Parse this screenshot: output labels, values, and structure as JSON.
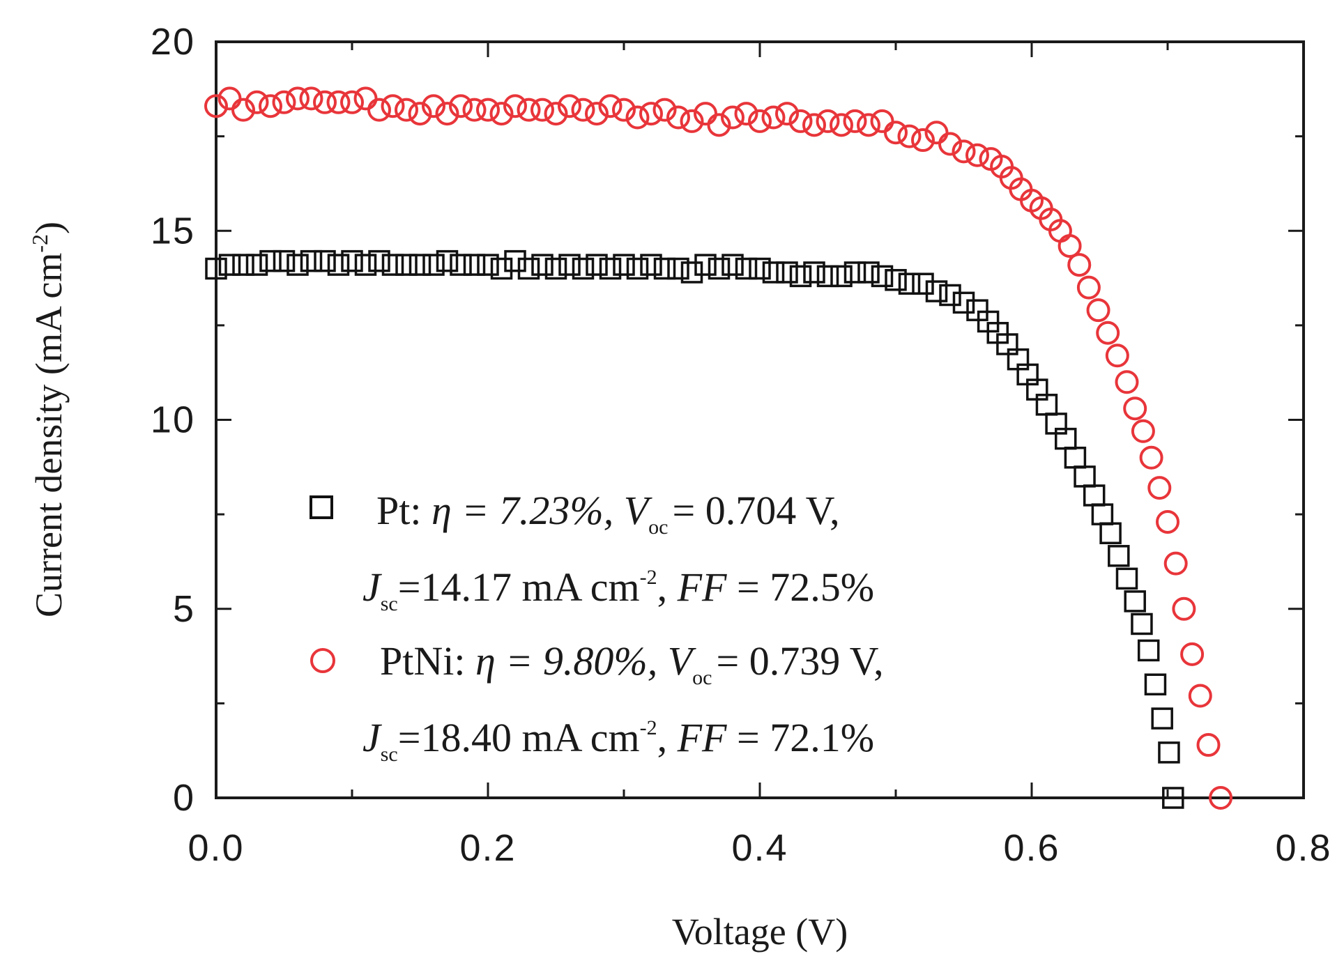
{
  "chart_data": {
    "type": "scatter",
    "title": "",
    "xlabel": "Voltage (V)",
    "ylabel": "Current density (mA cm",
    "ylabel_sup": "-2",
    "ylabel_close": ")",
    "xlim": [
      0.0,
      0.8
    ],
    "ylim": [
      0,
      20
    ],
    "x_ticks": [
      0.0,
      0.2,
      0.4,
      0.6,
      0.8
    ],
    "x_tick_labels": [
      "0.0",
      "0.2",
      "0.4",
      "0.6",
      "0.8"
    ],
    "y_ticks": [
      0,
      5,
      10,
      15,
      20
    ],
    "y_tick_labels": [
      "0",
      "5",
      "10",
      "15",
      "20"
    ],
    "legend_location": "center-left",
    "series": [
      {
        "name": "Pt",
        "marker": "square",
        "color": "#111111",
        "legend": {
          "name": "Pt:",
          "eta": "η = 7.23%,",
          "voc_label": "V",
          "voc_sub": "oc",
          "voc_value": "= 0.704 V,",
          "jsc_label": "J",
          "jsc_sub": "sc",
          "jsc_value": "=14.17 mA cm",
          "jsc_sup": "-2",
          "ff_sep": ",",
          "ff_label": "FF",
          "ff_value": "= 72.5%"
        },
        "points": [
          [
            0.0,
            14.0
          ],
          [
            0.01,
            14.1
          ],
          [
            0.02,
            14.1
          ],
          [
            0.03,
            14.1
          ],
          [
            0.04,
            14.2
          ],
          [
            0.05,
            14.2
          ],
          [
            0.06,
            14.1
          ],
          [
            0.07,
            14.2
          ],
          [
            0.08,
            14.2
          ],
          [
            0.09,
            14.1
          ],
          [
            0.1,
            14.2
          ],
          [
            0.11,
            14.1
          ],
          [
            0.12,
            14.2
          ],
          [
            0.13,
            14.1
          ],
          [
            0.14,
            14.1
          ],
          [
            0.15,
            14.1
          ],
          [
            0.16,
            14.1
          ],
          [
            0.17,
            14.2
          ],
          [
            0.18,
            14.1
          ],
          [
            0.19,
            14.1
          ],
          [
            0.2,
            14.1
          ],
          [
            0.21,
            14.0
          ],
          [
            0.22,
            14.2
          ],
          [
            0.23,
            14.0
          ],
          [
            0.24,
            14.1
          ],
          [
            0.25,
            14.0
          ],
          [
            0.26,
            14.1
          ],
          [
            0.27,
            14.0
          ],
          [
            0.28,
            14.1
          ],
          [
            0.29,
            14.0
          ],
          [
            0.3,
            14.1
          ],
          [
            0.31,
            14.0
          ],
          [
            0.32,
            14.1
          ],
          [
            0.33,
            14.0
          ],
          [
            0.34,
            14.0
          ],
          [
            0.35,
            13.9
          ],
          [
            0.36,
            14.1
          ],
          [
            0.37,
            14.0
          ],
          [
            0.38,
            14.1
          ],
          [
            0.39,
            14.0
          ],
          [
            0.4,
            14.0
          ],
          [
            0.41,
            13.9
          ],
          [
            0.42,
            13.9
          ],
          [
            0.43,
            13.8
          ],
          [
            0.44,
            13.9
          ],
          [
            0.45,
            13.8
          ],
          [
            0.46,
            13.8
          ],
          [
            0.47,
            13.9
          ],
          [
            0.48,
            13.9
          ],
          [
            0.49,
            13.8
          ],
          [
            0.5,
            13.7
          ],
          [
            0.51,
            13.6
          ],
          [
            0.52,
            13.6
          ],
          [
            0.53,
            13.4
          ],
          [
            0.54,
            13.3
          ],
          [
            0.55,
            13.1
          ],
          [
            0.56,
            12.9
          ],
          [
            0.568,
            12.6
          ],
          [
            0.575,
            12.3
          ],
          [
            0.582,
            12.0
          ],
          [
            0.59,
            11.6
          ],
          [
            0.597,
            11.2
          ],
          [
            0.604,
            10.8
          ],
          [
            0.611,
            10.4
          ],
          [
            0.618,
            9.9
          ],
          [
            0.625,
            9.5
          ],
          [
            0.632,
            9.0
          ],
          [
            0.639,
            8.5
          ],
          [
            0.646,
            8.0
          ],
          [
            0.652,
            7.5
          ],
          [
            0.658,
            7.0
          ],
          [
            0.664,
            6.4
          ],
          [
            0.67,
            5.8
          ],
          [
            0.676,
            5.2
          ],
          [
            0.681,
            4.6
          ],
          [
            0.686,
            3.9
          ],
          [
            0.691,
            3.0
          ],
          [
            0.696,
            2.1
          ],
          [
            0.701,
            1.2
          ],
          [
            0.704,
            0.0
          ]
        ]
      },
      {
        "name": "PtNi",
        "marker": "circle",
        "color": "#e8353a",
        "legend": {
          "name": "PtNi:",
          "eta": "η = 9.80%,",
          "voc_label": "V",
          "voc_sub": "oc",
          "voc_value": "= 0.739 V,",
          "jsc_label": "J",
          "jsc_sub": "sc",
          "jsc_value": "=18.40 mA cm",
          "jsc_sup": "-2",
          "ff_sep": ",",
          "ff_label": "FF",
          "ff_value": "= 72.1%"
        },
        "points": [
          [
            0.0,
            18.3
          ],
          [
            0.01,
            18.5
          ],
          [
            0.02,
            18.2
          ],
          [
            0.03,
            18.4
          ],
          [
            0.04,
            18.3
          ],
          [
            0.05,
            18.4
          ],
          [
            0.06,
            18.5
          ],
          [
            0.07,
            18.5
          ],
          [
            0.08,
            18.4
          ],
          [
            0.09,
            18.4
          ],
          [
            0.1,
            18.4
          ],
          [
            0.11,
            18.5
          ],
          [
            0.12,
            18.2
          ],
          [
            0.13,
            18.3
          ],
          [
            0.14,
            18.2
          ],
          [
            0.15,
            18.1
          ],
          [
            0.16,
            18.3
          ],
          [
            0.17,
            18.1
          ],
          [
            0.18,
            18.3
          ],
          [
            0.19,
            18.2
          ],
          [
            0.2,
            18.2
          ],
          [
            0.21,
            18.1
          ],
          [
            0.22,
            18.3
          ],
          [
            0.23,
            18.2
          ],
          [
            0.24,
            18.2
          ],
          [
            0.25,
            18.1
          ],
          [
            0.26,
            18.3
          ],
          [
            0.27,
            18.2
          ],
          [
            0.28,
            18.1
          ],
          [
            0.29,
            18.3
          ],
          [
            0.3,
            18.2
          ],
          [
            0.31,
            18.0
          ],
          [
            0.32,
            18.1
          ],
          [
            0.33,
            18.2
          ],
          [
            0.34,
            18.0
          ],
          [
            0.35,
            17.9
          ],
          [
            0.36,
            18.1
          ],
          [
            0.37,
            17.8
          ],
          [
            0.38,
            18.0
          ],
          [
            0.39,
            18.1
          ],
          [
            0.4,
            17.9
          ],
          [
            0.41,
            18.0
          ],
          [
            0.42,
            18.1
          ],
          [
            0.43,
            17.9
          ],
          [
            0.44,
            17.8
          ],
          [
            0.45,
            17.9
          ],
          [
            0.46,
            17.8
          ],
          [
            0.47,
            17.9
          ],
          [
            0.48,
            17.8
          ],
          [
            0.49,
            17.9
          ],
          [
            0.5,
            17.6
          ],
          [
            0.51,
            17.5
          ],
          [
            0.52,
            17.4
          ],
          [
            0.53,
            17.6
          ],
          [
            0.54,
            17.3
          ],
          [
            0.55,
            17.1
          ],
          [
            0.56,
            17.0
          ],
          [
            0.57,
            16.9
          ],
          [
            0.578,
            16.7
          ],
          [
            0.585,
            16.4
          ],
          [
            0.592,
            16.1
          ],
          [
            0.6,
            15.8
          ],
          [
            0.607,
            15.6
          ],
          [
            0.614,
            15.3
          ],
          [
            0.621,
            15.0
          ],
          [
            0.628,
            14.6
          ],
          [
            0.635,
            14.1
          ],
          [
            0.642,
            13.5
          ],
          [
            0.649,
            12.9
          ],
          [
            0.656,
            12.3
          ],
          [
            0.663,
            11.7
          ],
          [
            0.67,
            11.0
          ],
          [
            0.676,
            10.3
          ],
          [
            0.682,
            9.7
          ],
          [
            0.688,
            9.0
          ],
          [
            0.694,
            8.2
          ],
          [
            0.7,
            7.3
          ],
          [
            0.706,
            6.2
          ],
          [
            0.712,
            5.0
          ],
          [
            0.718,
            3.8
          ],
          [
            0.724,
            2.7
          ],
          [
            0.73,
            1.4
          ],
          [
            0.739,
            0.0
          ]
        ]
      }
    ]
  }
}
